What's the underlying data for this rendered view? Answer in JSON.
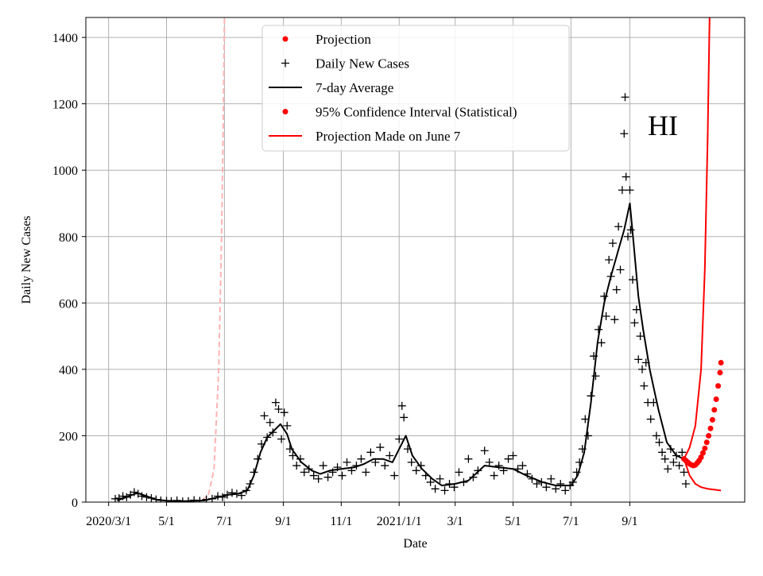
{
  "chart_data": {
    "type": "line",
    "annotation": "HI",
    "xlabel": "Date",
    "ylabel": "Daily New Cases",
    "xlim": [
      "2020-02-06",
      "2021-12-31"
    ],
    "ylim": [
      0,
      1460
    ],
    "grid": true,
    "legend_position": "top-center",
    "x_ticks": [
      {
        "date": "2020-03-01",
        "label": "2020/3/1"
      },
      {
        "date": "2020-05-01",
        "label": "5/1"
      },
      {
        "date": "2020-07-01",
        "label": "7/1"
      },
      {
        "date": "2020-09-01",
        "label": "9/1"
      },
      {
        "date": "2020-11-01",
        "label": "11/1"
      },
      {
        "date": "2021-01-01",
        "label": "2021/1/1"
      },
      {
        "date": "2021-03-01",
        "label": "3/1"
      },
      {
        "date": "2021-05-01",
        "label": "5/1"
      },
      {
        "date": "2021-07-01",
        "label": "7/1"
      },
      {
        "date": "2021-09-01",
        "label": "9/1"
      }
    ],
    "y_ticks": [
      0,
      200,
      400,
      600,
      800,
      1000,
      1200,
      1400
    ],
    "legend": [
      {
        "label": "Projection",
        "kind": "dot",
        "color": "#ff0000"
      },
      {
        "label": "Daily New Cases",
        "kind": "plus",
        "color": "#000000"
      },
      {
        "label": "7-day Average",
        "kind": "line",
        "color": "#000000"
      },
      {
        "label": "95% Confidence Interval (Statistical)",
        "kind": "dot",
        "color": "#ff0000"
      },
      {
        "label": "Projection Made on June 7",
        "kind": "line",
        "color": "#ff0000"
      }
    ],
    "series": [
      {
        "name": "7-day Average",
        "style": "line",
        "color": "#000000",
        "points": [
          [
            "2020-03-10",
            5
          ],
          [
            "2020-03-20",
            15
          ],
          [
            "2020-03-31",
            28
          ],
          [
            "2020-04-10",
            18
          ],
          [
            "2020-04-20",
            8
          ],
          [
            "2020-05-01",
            4
          ],
          [
            "2020-05-20",
            3
          ],
          [
            "2020-06-10",
            5
          ],
          [
            "2020-06-25",
            15
          ],
          [
            "2020-07-05",
            22
          ],
          [
            "2020-07-15",
            25
          ],
          [
            "2020-07-25",
            35
          ],
          [
            "2020-08-01",
            80
          ],
          [
            "2020-08-08",
            150
          ],
          [
            "2020-08-15",
            195
          ],
          [
            "2020-08-22",
            215
          ],
          [
            "2020-08-29",
            235
          ],
          [
            "2020-09-05",
            205
          ],
          [
            "2020-09-10",
            160
          ],
          [
            "2020-09-20",
            120
          ],
          [
            "2020-10-01",
            95
          ],
          [
            "2020-10-10",
            85
          ],
          [
            "2020-10-20",
            95
          ],
          [
            "2020-11-01",
            100
          ],
          [
            "2020-11-15",
            105
          ],
          [
            "2020-11-25",
            115
          ],
          [
            "2020-12-05",
            130
          ],
          [
            "2020-12-15",
            130
          ],
          [
            "2020-12-25",
            120
          ],
          [
            "2021-01-01",
            160
          ],
          [
            "2021-01-08",
            200
          ],
          [
            "2021-01-15",
            140
          ],
          [
            "2021-01-25",
            100
          ],
          [
            "2021-02-05",
            70
          ],
          [
            "2021-02-15",
            50
          ],
          [
            "2021-03-01",
            55
          ],
          [
            "2021-03-15",
            65
          ],
          [
            "2021-04-01",
            110
          ],
          [
            "2021-04-15",
            105
          ],
          [
            "2021-05-01",
            100
          ],
          [
            "2021-05-15",
            80
          ],
          [
            "2021-06-01",
            60
          ],
          [
            "2021-06-15",
            50
          ],
          [
            "2021-07-01",
            50
          ],
          [
            "2021-07-08",
            80
          ],
          [
            "2021-07-15",
            150
          ],
          [
            "2021-07-22",
            300
          ],
          [
            "2021-07-29",
            480
          ],
          [
            "2021-08-05",
            600
          ],
          [
            "2021-08-12",
            680
          ],
          [
            "2021-08-19",
            750
          ],
          [
            "2021-08-26",
            820
          ],
          [
            "2021-09-01",
            900
          ],
          [
            "2021-09-05",
            780
          ],
          [
            "2021-09-10",
            620
          ],
          [
            "2021-09-15",
            520
          ],
          [
            "2021-09-22",
            400
          ],
          [
            "2021-10-01",
            280
          ],
          [
            "2021-10-10",
            180
          ],
          [
            "2021-10-20",
            140
          ],
          [
            "2021-10-28",
            130
          ]
        ]
      },
      {
        "name": "Daily New Cases",
        "style": "plus",
        "color": "#000000",
        "points": [
          [
            "2020-03-08",
            10
          ],
          [
            "2020-03-12",
            12
          ],
          [
            "2020-03-16",
            18
          ],
          [
            "2020-03-20",
            15
          ],
          [
            "2020-03-24",
            22
          ],
          [
            "2020-03-28",
            30
          ],
          [
            "2020-04-01",
            25
          ],
          [
            "2020-04-05",
            18
          ],
          [
            "2020-04-10",
            15
          ],
          [
            "2020-04-15",
            12
          ],
          [
            "2020-04-20",
            8
          ],
          [
            "2020-04-25",
            5
          ],
          [
            "2020-05-01",
            4
          ],
          [
            "2020-05-06",
            3
          ],
          [
            "2020-05-12",
            5
          ],
          [
            "2020-05-18",
            2
          ],
          [
            "2020-05-24",
            3
          ],
          [
            "2020-05-30",
            6
          ],
          [
            "2020-06-05",
            4
          ],
          [
            "2020-06-12",
            8
          ],
          [
            "2020-06-18",
            10
          ],
          [
            "2020-06-24",
            18
          ],
          [
            "2020-06-29",
            15
          ],
          [
            "2020-07-04",
            22
          ],
          [
            "2020-07-09",
            28
          ],
          [
            "2020-07-14",
            25
          ],
          [
            "2020-07-19",
            20
          ],
          [
            "2020-07-24",
            35
          ],
          [
            "2020-07-28",
            55
          ],
          [
            "2020-08-01",
            90
          ],
          [
            "2020-08-05",
            130
          ],
          [
            "2020-08-09",
            175
          ],
          [
            "2020-08-12",
            260
          ],
          [
            "2020-08-15",
            195
          ],
          [
            "2020-08-18",
            240
          ],
          [
            "2020-08-21",
            210
          ],
          [
            "2020-08-24",
            300
          ],
          [
            "2020-08-27",
            280
          ],
          [
            "2020-08-30",
            190
          ],
          [
            "2020-09-02",
            270
          ],
          [
            "2020-09-05",
            230
          ],
          [
            "2020-09-08",
            160
          ],
          [
            "2020-09-11",
            140
          ],
          [
            "2020-09-15",
            110
          ],
          [
            "2020-09-19",
            130
          ],
          [
            "2020-09-23",
            90
          ],
          [
            "2020-09-28",
            100
          ],
          [
            "2020-10-03",
            80
          ],
          [
            "2020-10-08",
            70
          ],
          [
            "2020-10-13",
            110
          ],
          [
            "2020-10-18",
            75
          ],
          [
            "2020-10-23",
            90
          ],
          [
            "2020-10-28",
            105
          ],
          [
            "2020-11-02",
            80
          ],
          [
            "2020-11-07",
            120
          ],
          [
            "2020-11-12",
            95
          ],
          [
            "2020-11-17",
            110
          ],
          [
            "2020-11-22",
            130
          ],
          [
            "2020-11-27",
            90
          ],
          [
            "2020-12-02",
            150
          ],
          [
            "2020-12-07",
            120
          ],
          [
            "2020-12-12",
            165
          ],
          [
            "2020-12-17",
            110
          ],
          [
            "2020-12-22",
            140
          ],
          [
            "2020-12-27",
            80
          ],
          [
            "2021-01-01",
            190
          ],
          [
            "2021-01-04",
            290
          ],
          [
            "2021-01-06",
            255
          ],
          [
            "2021-01-10",
            160
          ],
          [
            "2021-01-14",
            120
          ],
          [
            "2021-01-19",
            95
          ],
          [
            "2021-01-24",
            110
          ],
          [
            "2021-01-29",
            80
          ],
          [
            "2021-02-03",
            60
          ],
          [
            "2021-02-08",
            40
          ],
          [
            "2021-02-13",
            70
          ],
          [
            "2021-02-18",
            35
          ],
          [
            "2021-02-23",
            55
          ],
          [
            "2021-02-28",
            45
          ],
          [
            "2021-03-05",
            90
          ],
          [
            "2021-03-10",
            60
          ],
          [
            "2021-03-15",
            130
          ],
          [
            "2021-03-20",
            75
          ],
          [
            "2021-03-25",
            95
          ],
          [
            "2021-04-01",
            155
          ],
          [
            "2021-04-06",
            120
          ],
          [
            "2021-04-11",
            80
          ],
          [
            "2021-04-16",
            110
          ],
          [
            "2021-04-21",
            95
          ],
          [
            "2021-04-26",
            130
          ],
          [
            "2021-05-01",
            140
          ],
          [
            "2021-05-06",
            100
          ],
          [
            "2021-05-11",
            110
          ],
          [
            "2021-05-16",
            85
          ],
          [
            "2021-05-21",
            70
          ],
          [
            "2021-05-26",
            55
          ],
          [
            "2021-05-31",
            60
          ],
          [
            "2021-06-05",
            45
          ],
          [
            "2021-06-10",
            70
          ],
          [
            "2021-06-15",
            40
          ],
          [
            "2021-06-20",
            55
          ],
          [
            "2021-06-25",
            35
          ],
          [
            "2021-06-30",
            50
          ],
          [
            "2021-07-03",
            60
          ],
          [
            "2021-07-07",
            90
          ],
          [
            "2021-07-10",
            120
          ],
          [
            "2021-07-13",
            160
          ],
          [
            "2021-07-16",
            250
          ],
          [
            "2021-07-19",
            200
          ],
          [
            "2021-07-22",
            320
          ],
          [
            "2021-07-25",
            440
          ],
          [
            "2021-07-27",
            380
          ],
          [
            "2021-07-30",
            520
          ],
          [
            "2021-08-02",
            480
          ],
          [
            "2021-08-05",
            620
          ],
          [
            "2021-08-07",
            560
          ],
          [
            "2021-08-10",
            730
          ],
          [
            "2021-08-12",
            680
          ],
          [
            "2021-08-14",
            780
          ],
          [
            "2021-08-16",
            550
          ],
          [
            "2021-08-18",
            640
          ],
          [
            "2021-08-20",
            830
          ],
          [
            "2021-08-22",
            700
          ],
          [
            "2021-08-24",
            940
          ],
          [
            "2021-08-26",
            1110
          ],
          [
            "2021-08-27",
            1220
          ],
          [
            "2021-08-28",
            980
          ],
          [
            "2021-08-30",
            800
          ],
          [
            "2021-09-01",
            940
          ],
          [
            "2021-09-02",
            820
          ],
          [
            "2021-09-04",
            670
          ],
          [
            "2021-09-06",
            540
          ],
          [
            "2021-09-08",
            580
          ],
          [
            "2021-09-10",
            430
          ],
          [
            "2021-09-12",
            500
          ],
          [
            "2021-09-14",
            400
          ],
          [
            "2021-09-16",
            350
          ],
          [
            "2021-09-18",
            420
          ],
          [
            "2021-09-20",
            300
          ],
          [
            "2021-09-23",
            250
          ],
          [
            "2021-09-26",
            300
          ],
          [
            "2021-09-29",
            200
          ],
          [
            "2021-10-02",
            180
          ],
          [
            "2021-10-05",
            150
          ],
          [
            "2021-10-08",
            130
          ],
          [
            "2021-10-11",
            100
          ],
          [
            "2021-10-14",
            160
          ],
          [
            "2021-10-17",
            120
          ],
          [
            "2021-10-20",
            140
          ],
          [
            "2021-10-23",
            110
          ],
          [
            "2021-10-26",
            150
          ],
          [
            "2021-10-28",
            90
          ],
          [
            "2021-10-30",
            55
          ]
        ]
      },
      {
        "name": "Projection",
        "style": "dots",
        "color": "#ff0000",
        "points": [
          [
            "2021-10-28",
            130
          ],
          [
            "2021-10-30",
            125
          ],
          [
            "2021-11-01",
            120
          ],
          [
            "2021-11-03",
            115
          ],
          [
            "2021-11-05",
            112
          ],
          [
            "2021-11-07",
            110
          ],
          [
            "2021-11-09",
            112
          ],
          [
            "2021-11-11",
            118
          ],
          [
            "2021-11-13",
            125
          ],
          [
            "2021-11-15",
            135
          ],
          [
            "2021-11-17",
            148
          ],
          [
            "2021-11-19",
            162
          ],
          [
            "2021-11-21",
            180
          ],
          [
            "2021-11-23",
            200
          ],
          [
            "2021-11-25",
            222
          ],
          [
            "2021-11-27",
            248
          ],
          [
            "2021-11-29",
            278
          ],
          [
            "2021-12-01",
            310
          ],
          [
            "2021-12-03",
            350
          ],
          [
            "2021-12-05",
            390
          ],
          [
            "2021-12-06",
            420
          ]
        ]
      },
      {
        "name": "95% Confidence Interval (Statistical)",
        "style": "line",
        "color": "#ff0000",
        "points": [
          [
            "2021-10-28",
            130
          ],
          [
            "2021-11-03",
            165
          ],
          [
            "2021-11-09",
            230
          ],
          [
            "2021-11-15",
            400
          ],
          [
            "2021-11-19",
            700
          ],
          [
            "2021-11-22",
            1100
          ],
          [
            "2021-11-24",
            1460
          ]
        ]
      },
      {
        "name": "95% Confidence Interval (Statistical)",
        "style": "line",
        "color": "#ff0000",
        "points": [
          [
            "2021-10-28",
            130
          ],
          [
            "2021-11-03",
            80
          ],
          [
            "2021-11-09",
            55
          ],
          [
            "2021-11-15",
            45
          ],
          [
            "2021-11-22",
            40
          ],
          [
            "2021-12-06",
            35
          ]
        ]
      },
      {
        "name": "Projection Made on June 7",
        "style": "dashed",
        "color": "#ffb3b3",
        "points": [
          [
            "2020-06-07",
            5
          ],
          [
            "2020-06-14",
            20
          ],
          [
            "2020-06-20",
            100
          ],
          [
            "2020-06-25",
            400
          ],
          [
            "2020-06-28",
            800
          ],
          [
            "2020-06-30",
            1200
          ],
          [
            "2020-07-01",
            1460
          ]
        ]
      }
    ]
  }
}
